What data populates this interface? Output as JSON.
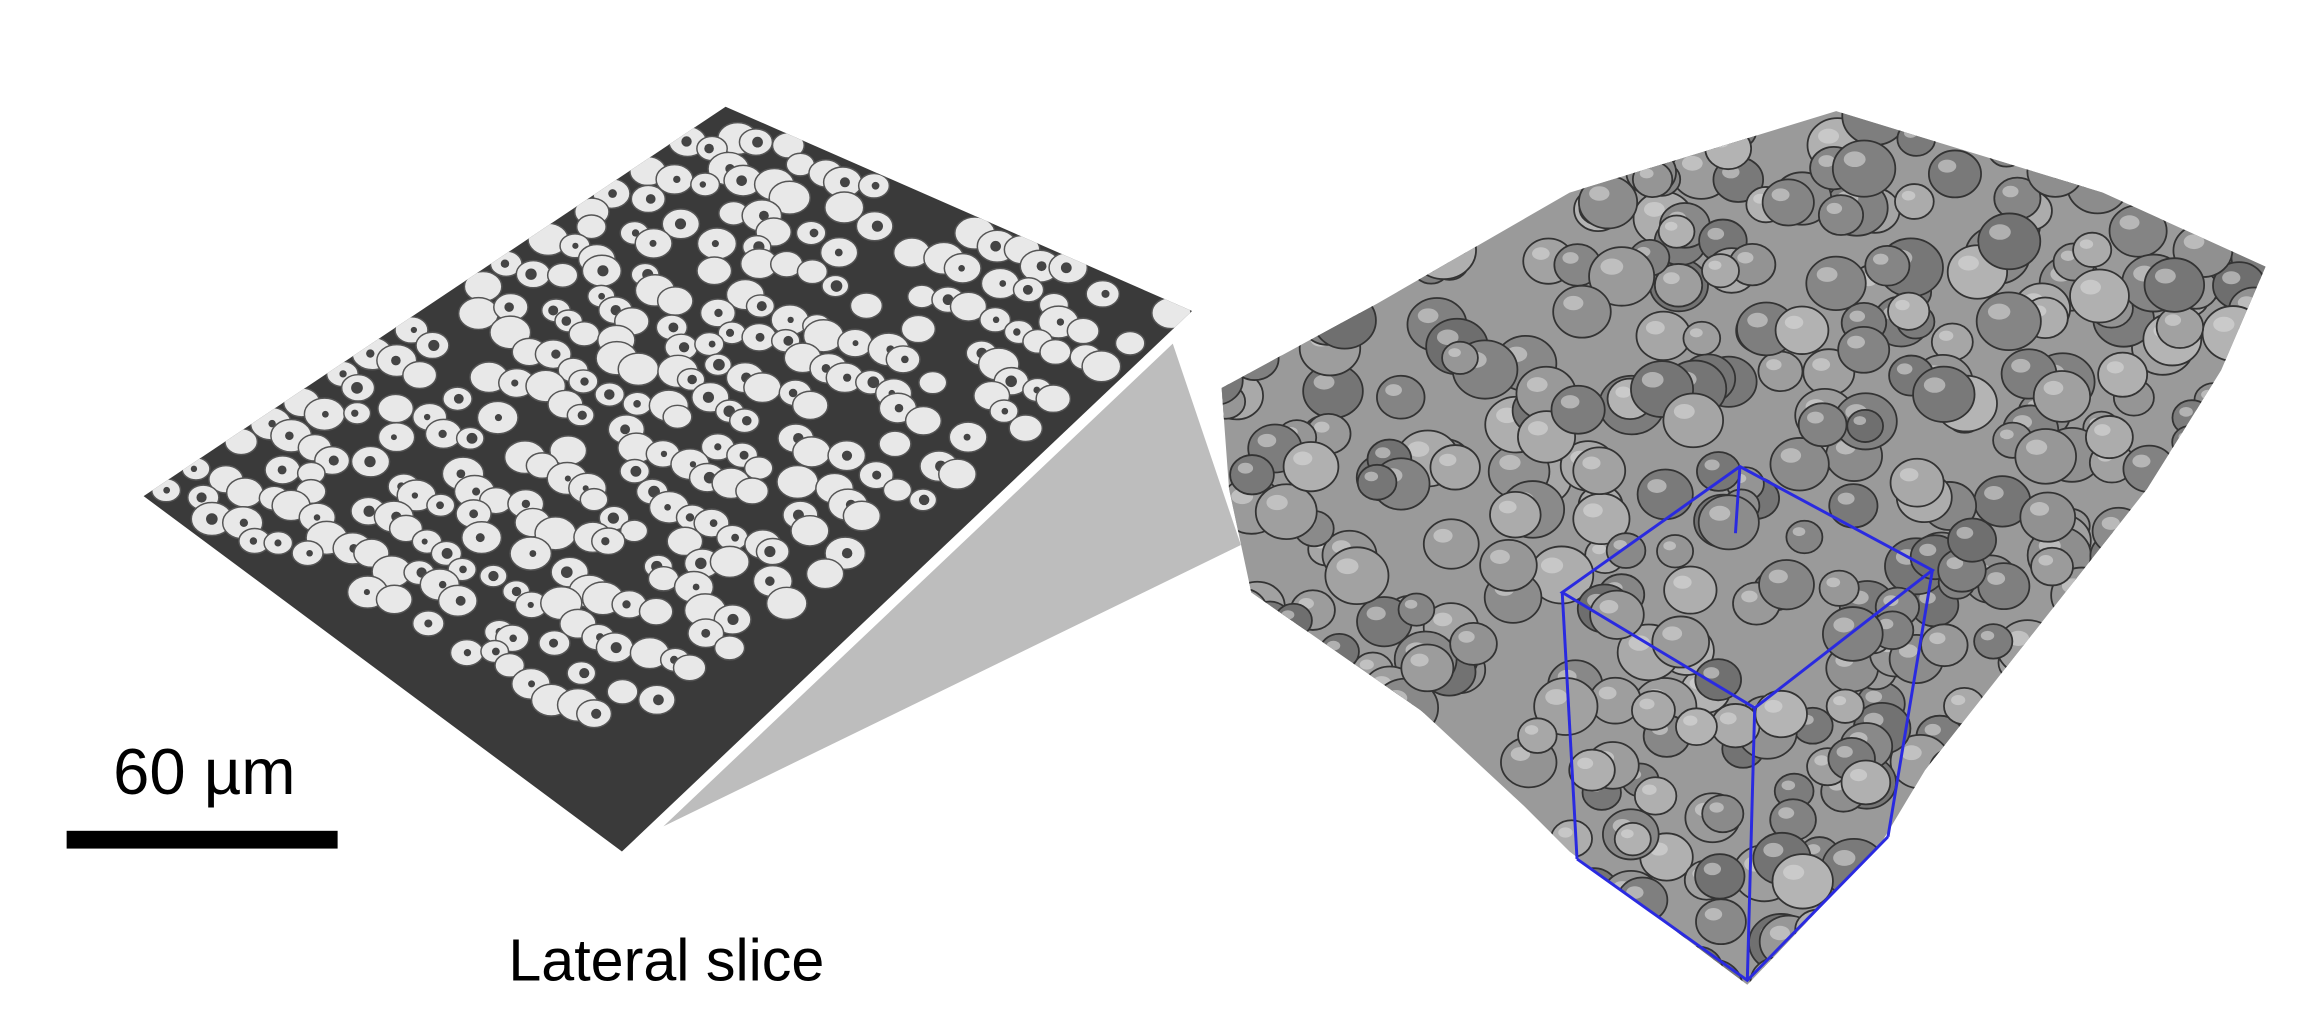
{
  "scale_bar": {
    "label": "60 µm"
  },
  "caption": "Lateral slice"
}
